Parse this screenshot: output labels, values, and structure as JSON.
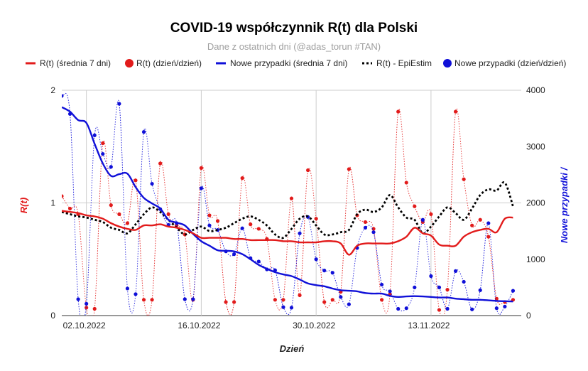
{
  "chart_data": {
    "type": "line",
    "title": "COVID-19 współczynnik R(t) dla Polski",
    "subtitle": "Dane z ostatnich dni (@adas_torun #TAN)",
    "xlabel": "Dzień",
    "ylabel_left": "R(t)",
    "ylabel_right": "Nowe przypadki /",
    "ylim_left": [
      0,
      2
    ],
    "ylim_right": [
      0,
      4000
    ],
    "y_ticks_left": [
      0,
      1,
      2
    ],
    "y_ticks_right": [
      0,
      1000,
      2000,
      3000,
      4000
    ],
    "x_tick_labels": [
      {
        "day": 2,
        "label": "02.10.2022"
      },
      {
        "day": 16,
        "label": "16.10.2022"
      },
      {
        "day": 30,
        "label": "30.10.2022"
      },
      {
        "day": 44,
        "label": "13.11.2022"
      }
    ],
    "x_range": [
      0,
      56
    ],
    "colors": {
      "red": "#e21b1b",
      "blue": "#1010d8",
      "black": "#000000",
      "grid": "#cccccc"
    },
    "legend": [
      {
        "key": "r7",
        "label": "R(t) (średnia 7 dni)",
        "marker": "line",
        "color": "#e21b1b"
      },
      {
        "key": "rd",
        "label": "R(t) (dzień/dzień)",
        "marker": "dot",
        "color": "#e21b1b"
      },
      {
        "key": "c7",
        "label": "Nowe przypadki (średnia 7 dni)",
        "marker": "line",
        "color": "#1010d8"
      },
      {
        "key": "epi",
        "label": "R(t) - EpiEstim",
        "marker": "dots",
        "color": "#000000"
      },
      {
        "key": "cd",
        "label": "Nowe przypadki (dzień/dzień)",
        "marker": "dot",
        "color": "#1010d8"
      }
    ],
    "series": [
      {
        "name": "R(t) (średnia 7 dni)",
        "axis": "left",
        "style": "line",
        "color": "#e21b1b",
        "x": [
          0,
          1,
          2,
          3,
          4,
          5,
          6,
          7,
          8,
          9,
          10,
          11,
          12,
          13,
          14,
          15,
          16,
          17,
          18,
          19,
          20,
          21,
          22,
          23,
          24,
          25,
          26,
          27,
          28,
          29,
          30,
          31,
          32,
          33,
          34,
          35,
          36,
          37,
          38,
          39,
          40,
          41,
          42,
          43,
          44,
          45,
          46,
          47,
          48,
          49,
          50,
          51,
          52,
          53,
          54,
          55
        ],
        "values": [
          0.93,
          0.92,
          0.91,
          0.89,
          0.88,
          0.86,
          0.82,
          0.79,
          0.77,
          0.76,
          0.8,
          0.8,
          0.81,
          0.79,
          0.78,
          0.76,
          0.73,
          0.69,
          0.69,
          0.69,
          0.69,
          0.68,
          0.68,
          0.67,
          0.67,
          0.67,
          0.67,
          0.66,
          0.66,
          0.65,
          0.65,
          0.65,
          0.66,
          0.66,
          0.64,
          0.54,
          0.62,
          0.64,
          0.64,
          0.64,
          0.64,
          0.66,
          0.7,
          0.78,
          0.73,
          0.71,
          0.63,
          0.62,
          0.62,
          0.7,
          0.74,
          0.76,
          0.77,
          0.74,
          0.86,
          0.87
        ]
      },
      {
        "name": "R(t) (dzień/dzień)",
        "axis": "left",
        "style": "dots",
        "color": "#e21b1b",
        "x": [
          0,
          1,
          2,
          3,
          4,
          5,
          6,
          7,
          8,
          9,
          10,
          11,
          12,
          13,
          14,
          15,
          16,
          17,
          18,
          19,
          20,
          21,
          22,
          23,
          24,
          25,
          26,
          27,
          28,
          29,
          30,
          31,
          32,
          33,
          34,
          35,
          36,
          37,
          38,
          39,
          40,
          41,
          42,
          43,
          44,
          45,
          46,
          47,
          48,
          49,
          50,
          51,
          52,
          53,
          54,
          55
        ],
        "values": [
          1.06,
          0.95,
          0.9,
          0.07,
          0.06,
          1.53,
          0.98,
          0.9,
          0.82,
          1.2,
          0.14,
          0.14,
          1.35,
          0.9,
          0.8,
          0.72,
          0.14,
          1.31,
          0.89,
          0.84,
          0.12,
          0.12,
          1.22,
          0.81,
          0.77,
          0.68,
          0.14,
          0.14,
          1.04,
          0.18,
          1.29,
          0.86,
          0.12,
          0.14,
          0.21,
          1.3,
          0.89,
          0.83,
          0.77,
          0.14,
          0.19,
          1.81,
          1.18,
          0.97,
          0.83,
          0.9,
          0.05,
          0.23,
          1.81,
          1.21,
          0.8,
          0.85,
          0.7,
          0.15,
          0.12,
          0.14
        ]
      },
      {
        "name": "Nowe przypadki (średnia 7 dni)",
        "axis": "right",
        "style": "line",
        "color": "#1010d8",
        "x": [
          0,
          1,
          2,
          3,
          4,
          5,
          6,
          7,
          8,
          9,
          10,
          11,
          12,
          13,
          14,
          15,
          16,
          17,
          18,
          19,
          20,
          21,
          22,
          23,
          24,
          25,
          26,
          27,
          28,
          29,
          30,
          31,
          32,
          33,
          34,
          35,
          36,
          37,
          38,
          39,
          40,
          41,
          42,
          43,
          44,
          45,
          46,
          47,
          48,
          49,
          50,
          51,
          52,
          53,
          54,
          55
        ],
        "values": [
          3700,
          3620,
          3470,
          3420,
          3050,
          2700,
          2480,
          2510,
          2520,
          2280,
          2090,
          1990,
          1900,
          1700,
          1650,
          1600,
          1450,
          1320,
          1240,
          1160,
          1150,
          1140,
          1090,
          1000,
          900,
          830,
          770,
          730,
          700,
          640,
          570,
          540,
          520,
          480,
          450,
          440,
          430,
          400,
          390,
          390,
          350,
          330,
          340,
          345,
          340,
          330,
          320,
          320,
          300,
          290,
          280,
          280,
          270,
          260,
          255,
          250
        ]
      },
      {
        "name": "R(t) - EpiEstim",
        "axis": "left",
        "style": "dotted",
        "color": "#000000",
        "x": [
          0,
          1,
          2,
          3,
          4,
          5,
          6,
          7,
          8,
          9,
          10,
          11,
          12,
          13,
          14,
          15,
          16,
          17,
          18,
          19,
          20,
          21,
          22,
          23,
          24,
          25,
          26,
          27,
          28,
          29,
          30,
          31,
          32,
          33,
          34,
          35,
          36,
          37,
          38,
          39,
          40,
          41,
          42,
          43,
          44,
          45,
          46,
          47,
          48,
          49,
          50,
          51,
          52,
          53,
          54,
          55
        ],
        "values": [
          0.92,
          0.9,
          0.88,
          0.87,
          0.85,
          0.83,
          0.78,
          0.76,
          0.73,
          0.81,
          0.9,
          0.96,
          0.92,
          0.85,
          0.78,
          0.72,
          0.76,
          0.79,
          0.75,
          0.76,
          0.78,
          0.82,
          0.86,
          0.88,
          0.85,
          0.8,
          0.72,
          0.69,
          0.77,
          0.86,
          0.88,
          0.8,
          0.72,
          0.72,
          0.74,
          0.76,
          0.9,
          0.94,
          0.92,
          0.96,
          1.07,
          0.96,
          0.87,
          0.85,
          0.73,
          0.79,
          0.88,
          0.96,
          0.91,
          0.85,
          0.95,
          1.07,
          1.12,
          1.11,
          1.18,
          0.97
        ]
      },
      {
        "name": "Nowe przypadki (dzień/dzień)",
        "axis": "right",
        "style": "dots",
        "color": "#1010d8",
        "x": [
          0,
          1,
          2,
          3,
          4,
          5,
          6,
          7,
          8,
          9,
          10,
          11,
          12,
          13,
          14,
          15,
          16,
          17,
          18,
          19,
          20,
          21,
          22,
          23,
          24,
          25,
          26,
          27,
          28,
          29,
          30,
          31,
          32,
          33,
          34,
          35,
          36,
          37,
          38,
          39,
          40,
          41,
          42,
          43,
          44,
          45,
          46,
          47,
          48,
          49,
          50,
          51,
          52,
          53,
          54,
          55
        ],
        "values": [
          3900,
          3580,
          290,
          210,
          3200,
          2870,
          2640,
          3760,
          480,
          380,
          3260,
          2340,
          1890,
          1610,
          1640,
          290,
          290,
          2260,
          1600,
          1520,
          1140,
          1090,
          1550,
          1020,
          960,
          820,
          805,
          150,
          140,
          1460,
          1750,
          1000,
          800,
          760,
          330,
          200,
          1200,
          1560,
          1480,
          550,
          430,
          120,
          130,
          500,
          1700,
          700,
          500,
          120,
          790,
          600,
          110,
          450,
          1640,
          130,
          160,
          440
        ]
      }
    ]
  }
}
